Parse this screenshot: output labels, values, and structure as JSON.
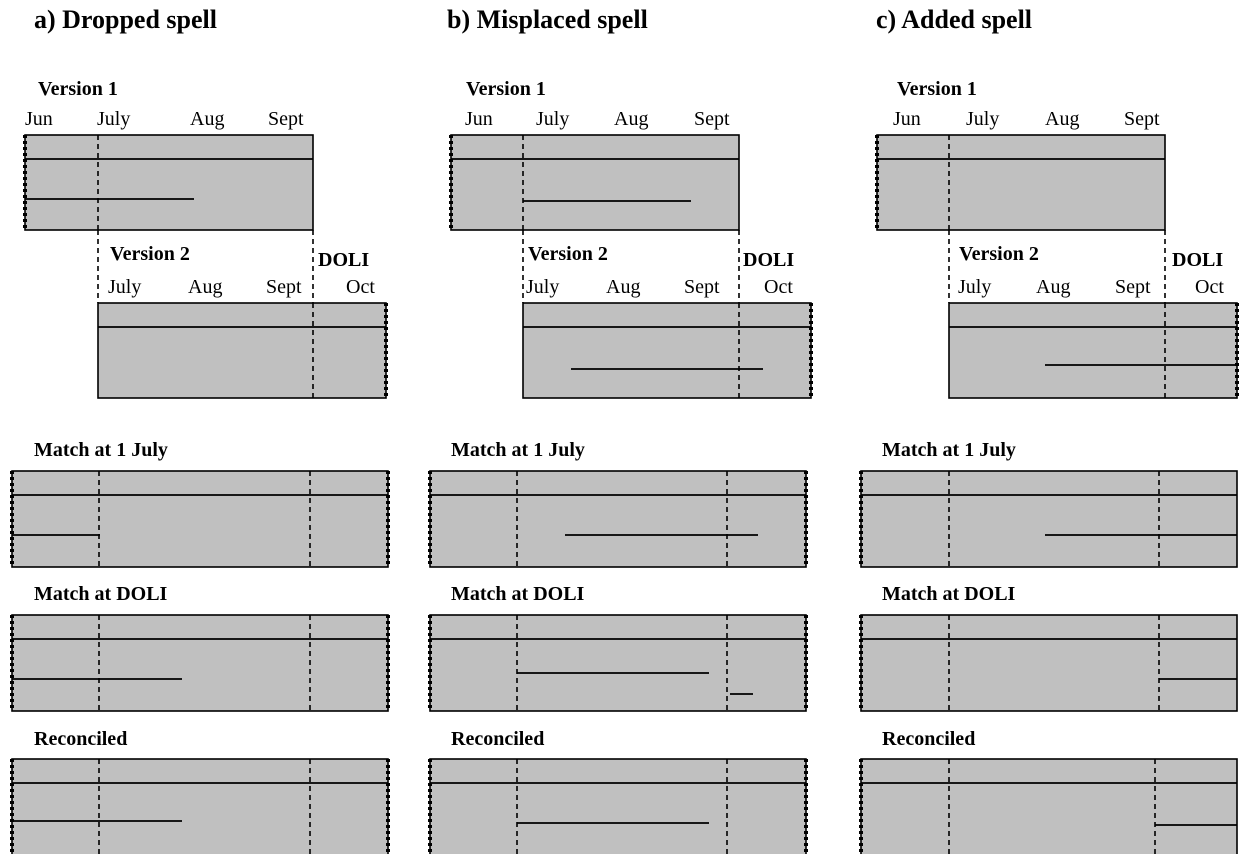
{
  "panels": [
    {
      "title": "a) Dropped spell",
      "version1": {
        "label": "Version 1",
        "months": [
          "Jun",
          "July",
          "Aug",
          "Sept"
        ]
      },
      "version2": {
        "label": "Version 2",
        "months": [
          "July",
          "Aug",
          "Sept",
          "Oct"
        ]
      },
      "doli_label": "DOLI",
      "rows": [
        {
          "label": "Match at 1 July"
        },
        {
          "label": "Match at DOLI"
        },
        {
          "label": "Reconciled"
        }
      ]
    },
    {
      "title": "b) Misplaced spell",
      "version1": {
        "label": "Version 1",
        "months": [
          "Jun",
          "July",
          "Aug",
          "Sept"
        ]
      },
      "version2": {
        "label": "Version 2",
        "months": [
          "July",
          "Aug",
          "Sept",
          "Oct"
        ]
      },
      "doli_label": "DOLI",
      "rows": [
        {
          "label": "Match at 1 July"
        },
        {
          "label": "Match at DOLI"
        },
        {
          "label": "Reconciled"
        }
      ]
    },
    {
      "title": "c) Added spell",
      "version1": {
        "label": "Version 1",
        "months": [
          "Jun",
          "July",
          "Aug",
          "Sept"
        ]
      },
      "version2": {
        "label": "Version 2",
        "months": [
          "July",
          "Aug",
          "Sept",
          "Oct"
        ]
      },
      "doli_label": "DOLI",
      "rows": [
        {
          "label": "Match at 1 July"
        },
        {
          "label": "Match at DOLI"
        },
        {
          "label": "Reconciled"
        }
      ]
    }
  ]
}
